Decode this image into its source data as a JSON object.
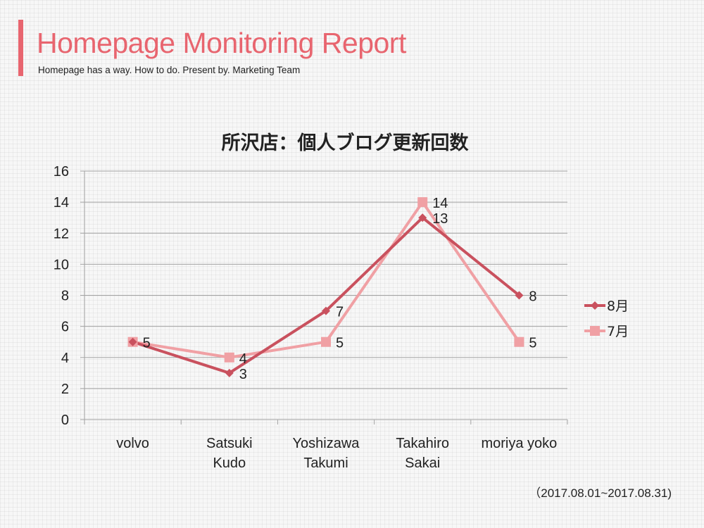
{
  "header": {
    "title": "Homepage Monitoring Report",
    "subtitle": "Homepage has a way. How to do. Present by. Marketing Team",
    "accent_color": "#e8656f"
  },
  "footer": {
    "date_range": "（2017.08.01~2017.08.31)"
  },
  "chart_data": {
    "type": "line",
    "title": "所沢店：個人ブログ更新回数",
    "xlabel": "",
    "ylabel": "",
    "ylim": [
      0,
      16
    ],
    "yticks": [
      0,
      2,
      4,
      6,
      8,
      10,
      12,
      14,
      16
    ],
    "grid": true,
    "legend_position": "right",
    "categories": [
      [
        "volvo"
      ],
      [
        "Satsuki",
        "Kudo"
      ],
      [
        "Yoshizawa",
        "Takumi"
      ],
      [
        "Takahiro",
        "Sakai"
      ],
      [
        "moriya yoko"
      ]
    ],
    "series": [
      {
        "name": "8月",
        "values": [
          5,
          3,
          7,
          13,
          8
        ],
        "color": "#c9515e",
        "marker": "diamond"
      },
      {
        "name": "7月",
        "values": [
          5,
          4,
          5,
          14,
          5
        ],
        "color": "#f0a0a4",
        "marker": "square"
      }
    ]
  }
}
